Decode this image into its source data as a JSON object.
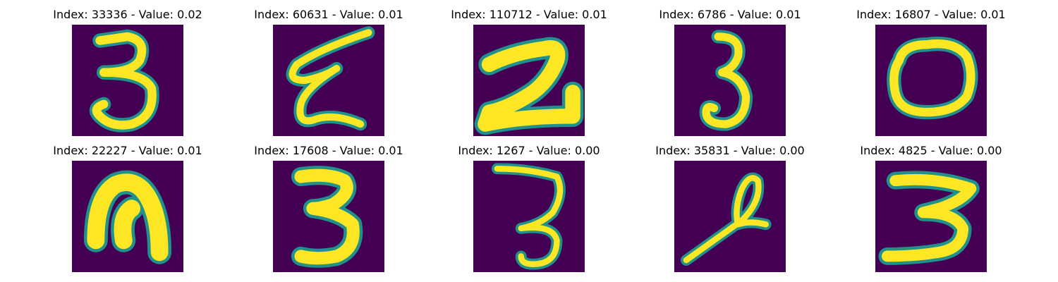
{
  "colors": {
    "background": "#440154",
    "stroke_core": "#fde725",
    "stroke_edge": "#21918c"
  },
  "panels": [
    {
      "title": "Index: 33336 - Value: 0.02",
      "glyph": "digit-3"
    },
    {
      "title": "Index: 60631 - Value: 0.01",
      "glyph": "digit-e-like"
    },
    {
      "title": "Index: 110712 - Value: 0.01",
      "glyph": "digit-2-bold"
    },
    {
      "title": "Index: 6786 - Value: 0.01",
      "glyph": "digit-3-narrow"
    },
    {
      "title": "Index: 16807 - Value: 0.01",
      "glyph": "digit-0"
    },
    {
      "title": "Index: 22227 - Value: 0.01",
      "glyph": "digit-n-like"
    },
    {
      "title": "Index: 17608 - Value: 0.01",
      "glyph": "digit-3-bold"
    },
    {
      "title": "Index: 1267 - Value: 0.00",
      "glyph": "digit-3-thin"
    },
    {
      "title": "Index: 35831 - Value: 0.00",
      "glyph": "digit-4-like"
    },
    {
      "title": "Index: 4825 - Value: 0.00",
      "glyph": "digit-3-wide"
    }
  ]
}
